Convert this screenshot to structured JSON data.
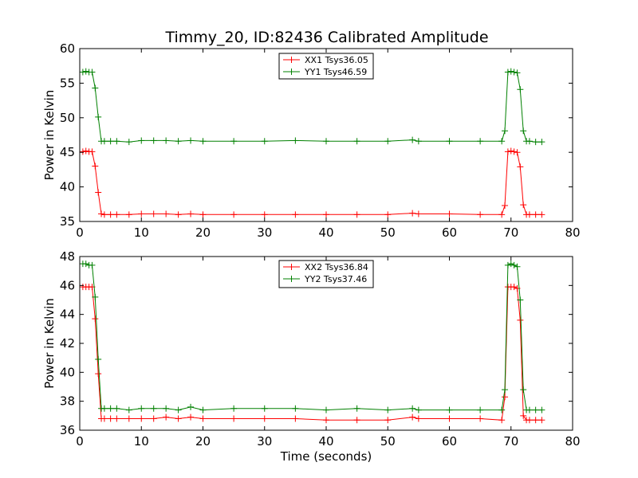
{
  "chart_data": [
    {
      "type": "line",
      "title": "Timmy_20, ID:82436 Calibrated Amplitude",
      "xlabel": "",
      "ylabel": "Power in Kelvin",
      "xlim": [
        0,
        80
      ],
      "ylim": [
        35,
        60
      ],
      "xticks": [
        "0",
        "10",
        "20",
        "30",
        "40",
        "50",
        "60",
        "70",
        "80"
      ],
      "yticks": [
        "35",
        "40",
        "45",
        "50",
        "55",
        "60"
      ],
      "legend_position": "top-center",
      "grid": false,
      "series": [
        {
          "name": "XX1 Tsys36.05",
          "color": "#ff0000",
          "marker": "plus",
          "x": [
            0.5,
            1.0,
            1.5,
            2.0,
            2.5,
            3.0,
            3.5,
            4.0,
            5.0,
            6.0,
            8.0,
            10.0,
            12.0,
            14.0,
            16.0,
            18.0,
            20.0,
            25.0,
            30.0,
            35.0,
            40.0,
            45.0,
            50.0,
            54.0,
            55.0,
            60.0,
            65.0,
            68.5,
            69.0,
            69.5,
            70.0,
            70.5,
            71.0,
            71.5,
            72.0,
            72.5,
            73.0,
            74.0,
            75.0
          ],
          "y": [
            45.1,
            45.2,
            45.1,
            45.1,
            43.0,
            39.2,
            36.1,
            36.0,
            36.0,
            36.0,
            36.0,
            36.1,
            36.1,
            36.1,
            36.0,
            36.1,
            36.0,
            36.0,
            36.0,
            36.0,
            36.0,
            36.0,
            36.0,
            36.2,
            36.1,
            36.1,
            36.0,
            36.0,
            37.3,
            45.1,
            45.2,
            45.1,
            45.0,
            42.9,
            37.4,
            36.0,
            36.0,
            36.0,
            36.0
          ]
        },
        {
          "name": "YY1 Tsys46.59",
          "color": "#008000",
          "marker": "plus",
          "x": [
            0.5,
            1.0,
            1.5,
            2.0,
            2.5,
            3.0,
            3.5,
            4.0,
            5.0,
            6.0,
            8.0,
            10.0,
            12.0,
            14.0,
            16.0,
            18.0,
            20.0,
            25.0,
            30.0,
            35.0,
            40.0,
            45.0,
            50.0,
            54.0,
            55.0,
            60.0,
            65.0,
            68.5,
            69.0,
            69.5,
            70.0,
            70.5,
            71.0,
            71.5,
            72.0,
            72.5,
            73.0,
            74.0,
            75.0
          ],
          "y": [
            56.6,
            56.7,
            56.6,
            56.6,
            54.3,
            50.1,
            46.6,
            46.6,
            46.6,
            46.6,
            46.5,
            46.7,
            46.7,
            46.7,
            46.6,
            46.7,
            46.6,
            46.6,
            46.6,
            46.7,
            46.6,
            46.6,
            46.6,
            46.8,
            46.6,
            46.6,
            46.6,
            46.6,
            48.1,
            56.6,
            56.7,
            56.6,
            56.5,
            54.1,
            48.1,
            46.6,
            46.6,
            46.5,
            46.5
          ]
        }
      ]
    },
    {
      "type": "line",
      "title": "",
      "xlabel": "Time (seconds)",
      "ylabel": "Power in Kelvin",
      "xlim": [
        0,
        80
      ],
      "ylim": [
        36,
        48
      ],
      "xticks": [
        "0",
        "10",
        "20",
        "30",
        "40",
        "50",
        "60",
        "70",
        "80"
      ],
      "yticks": [
        "36",
        "38",
        "40",
        "42",
        "44",
        "46",
        "48"
      ],
      "legend_position": "top-center",
      "grid": false,
      "series": [
        {
          "name": "XX2 Tsys36.84",
          "color": "#ff0000",
          "marker": "plus",
          "x": [
            0.5,
            1.0,
            1.5,
            2.0,
            2.5,
            3.0,
            3.5,
            4.0,
            5.0,
            6.0,
            8.0,
            10.0,
            12.0,
            14.0,
            16.0,
            18.0,
            20.0,
            25.0,
            30.0,
            35.0,
            40.0,
            45.0,
            50.0,
            54.0,
            55.0,
            60.0,
            65.0,
            68.5,
            69.0,
            69.5,
            70.0,
            70.5,
            71.0,
            71.5,
            72.0,
            72.5,
            73.0,
            74.0,
            75.0
          ],
          "y": [
            45.9,
            45.9,
            45.9,
            45.9,
            43.7,
            39.9,
            36.8,
            36.8,
            36.8,
            36.8,
            36.8,
            36.8,
            36.8,
            36.9,
            36.8,
            36.9,
            36.8,
            36.8,
            36.8,
            36.8,
            36.7,
            36.7,
            36.7,
            36.9,
            36.8,
            36.8,
            36.8,
            36.7,
            38.3,
            45.9,
            45.9,
            45.9,
            45.8,
            43.6,
            37.0,
            36.7,
            36.7,
            36.7,
            36.7
          ]
        },
        {
          "name": "YY2 Tsys37.46",
          "color": "#008000",
          "marker": "plus",
          "x": [
            0.5,
            1.0,
            1.5,
            2.0,
            2.5,
            3.0,
            3.5,
            4.0,
            5.0,
            6.0,
            8.0,
            10.0,
            12.0,
            14.0,
            16.0,
            18.0,
            20.0,
            25.0,
            30.0,
            35.0,
            40.0,
            45.0,
            50.0,
            54.0,
            55.0,
            60.0,
            65.0,
            68.5,
            69.0,
            69.5,
            70.0,
            70.5,
            71.0,
            71.5,
            72.0,
            72.5,
            73.0,
            74.0,
            75.0
          ],
          "y": [
            47.5,
            47.5,
            47.4,
            47.4,
            45.2,
            40.9,
            37.5,
            37.5,
            37.5,
            37.5,
            37.4,
            37.5,
            37.5,
            37.5,
            37.4,
            37.6,
            37.4,
            37.5,
            37.5,
            37.5,
            37.4,
            37.5,
            37.4,
            37.5,
            37.4,
            37.4,
            37.4,
            37.4,
            38.8,
            47.4,
            47.5,
            47.4,
            47.3,
            45.0,
            38.8,
            37.4,
            37.4,
            37.4,
            37.4
          ]
        }
      ]
    }
  ]
}
